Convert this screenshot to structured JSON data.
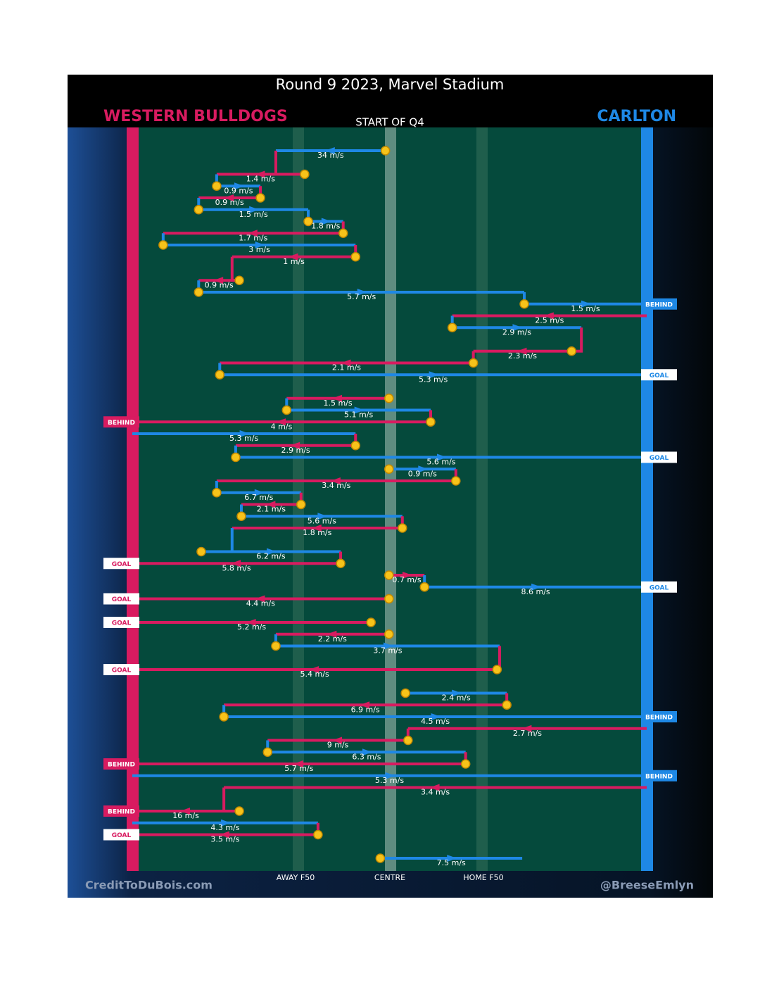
{
  "header": {
    "title": "Round 9 2023, Marvel Stadium",
    "home_team": "WESTERN BULLDOGS",
    "away_team": "CARLTON",
    "subtitle": "START OF Q4"
  },
  "field": {
    "labels": [
      "AWAY F50",
      "CENTRE",
      "HOME F50"
    ]
  },
  "footer": {
    "left": "CreditToDuBois.com",
    "right": "@BreeseEmlyn"
  },
  "chains": [
    {
      "row": 0,
      "team": "Carlton",
      "from": 49.2,
      "to": 27.9,
      "speed": "34 m/s"
    },
    {
      "row": 2,
      "team": "Western Bulldogs",
      "from": 33.5,
      "to": 16.4,
      "speed": "1.4 m/s"
    },
    {
      "row": 3,
      "team": "Carlton",
      "from": 16.4,
      "to": 24.9,
      "speed": "0.9 m/s"
    },
    {
      "row": 4,
      "team": "Western Bulldogs",
      "from": 24.9,
      "to": 12.9,
      "speed": "0.9 m/s"
    },
    {
      "row": 5,
      "team": "Carlton",
      "from": 12.9,
      "to": 34.2,
      "speed": "1.5 m/s"
    },
    {
      "row": 6,
      "team": "Carlton",
      "from": 34.2,
      "to": 41.0,
      "speed": "1.8 m/s"
    },
    {
      "row": 7,
      "team": "Western Bulldogs",
      "from": 41.0,
      "to": 6.0,
      "speed": "1.7 m/s"
    },
    {
      "row": 8,
      "team": "Carlton",
      "from": 6.0,
      "to": 43.4,
      "speed": "3 m/s"
    },
    {
      "row": 9,
      "team": "Western Bulldogs",
      "from": 43.4,
      "to": 19.4,
      "speed": "1 m/s"
    },
    {
      "row": 11,
      "team": "Western Bulldogs",
      "from": 20.8,
      "to": 12.9,
      "speed": "0.9 m/s"
    },
    {
      "row": 12,
      "team": "Carlton",
      "from": 12.9,
      "to": 76.2,
      "speed": "5.7 m/s"
    },
    {
      "row": 13,
      "team": "Carlton",
      "from": 76.2,
      "to": 100,
      "speed": "1.5 m/s",
      "outcome": "BEHIND"
    },
    {
      "row": 14,
      "team": "Western Bulldogs",
      "from": 100,
      "to": 62.2,
      "speed": "2.5 m/s"
    },
    {
      "row": 15,
      "team": "Carlton",
      "from": 62.2,
      "to": 87.3,
      "speed": "2.9 m/s"
    },
    {
      "row": 17,
      "team": "Western Bulldogs",
      "from": 85.4,
      "to": 66.3,
      "speed": "2.3 m/s"
    },
    {
      "row": 18,
      "team": "Western Bulldogs",
      "from": 66.3,
      "to": 17.0,
      "speed": "2.1 m/s"
    },
    {
      "row": 19,
      "team": "Carlton",
      "from": 17.0,
      "to": 100,
      "speed": "5.3 m/s",
      "outcome": "GOAL"
    },
    {
      "row": 21,
      "team": "Western Bulldogs",
      "from": 49.9,
      "to": 30.0,
      "speed": "1.5 m/s"
    },
    {
      "row": 22,
      "team": "Carlton",
      "from": 30.0,
      "to": 58.0,
      "speed": "5.1 m/s"
    },
    {
      "row": 23,
      "team": "Western Bulldogs",
      "from": 58.0,
      "to": 0,
      "speed": "4 m/s",
      "outcome": "BEHIND"
    },
    {
      "row": 24,
      "team": "Carlton",
      "from": 0,
      "to": 43.4,
      "speed": "5.3 m/s"
    },
    {
      "row": 25,
      "team": "Western Bulldogs",
      "from": 43.4,
      "to": 20.1,
      "speed": "2.9 m/s"
    },
    {
      "row": 26,
      "team": "Carlton",
      "from": 20.1,
      "to": 100,
      "speed": "5.6 m/s",
      "outcome": "GOAL"
    },
    {
      "row": 27,
      "team": "Carlton",
      "from": 49.9,
      "to": 62.9,
      "speed": "0.9 m/s"
    },
    {
      "row": 28,
      "team": "Western Bulldogs",
      "from": 62.9,
      "to": 16.4,
      "speed": "3.4 m/s"
    },
    {
      "row": 29,
      "team": "Carlton",
      "from": 16.4,
      "to": 32.8,
      "speed": "6.7 m/s"
    },
    {
      "row": 30,
      "team": "Western Bulldogs",
      "from": 32.8,
      "to": 21.2,
      "speed": "2.1 m/s"
    },
    {
      "row": 31,
      "team": "Carlton",
      "from": 21.2,
      "to": 52.5,
      "speed": "5.6 m/s"
    },
    {
      "row": 32,
      "team": "Western Bulldogs",
      "from": 52.5,
      "to": 19.4,
      "speed": "1.8 m/s"
    },
    {
      "row": 34,
      "team": "Carlton",
      "from": 13.4,
      "to": 40.5,
      "speed": "6.2 m/s"
    },
    {
      "row": 35,
      "team": "Western Bulldogs",
      "from": 40.5,
      "to": 0,
      "speed": "5.8 m/s",
      "outcome": "GOAL"
    },
    {
      "row": 36,
      "team": "Western Bulldogs",
      "from": 49.9,
      "to": 56.8,
      "speed": "0.7 m/s"
    },
    {
      "row": 37,
      "team": "Carlton",
      "from": 56.8,
      "to": 100,
      "speed": "8.6 m/s",
      "outcome": "GOAL"
    },
    {
      "row": 38,
      "team": "Western Bulldogs",
      "from": 49.9,
      "to": 0,
      "speed": "4.4 m/s",
      "outcome": "GOAL"
    },
    {
      "row": 40,
      "team": "Western Bulldogs",
      "from": 46.4,
      "to": 0,
      "speed": "5.2 m/s",
      "outcome": "GOAL"
    },
    {
      "row": 41,
      "team": "Western Bulldogs",
      "from": 49.9,
      "to": 27.9,
      "speed": "2.2 m/s"
    },
    {
      "row": 42,
      "team": "Carlton",
      "from": 27.9,
      "to": 71.4,
      "speed": "3.7 m/s"
    },
    {
      "row": 44,
      "team": "Western Bulldogs",
      "from": 70.9,
      "to": 0,
      "speed": "5.4 m/s",
      "outcome": "GOAL"
    },
    {
      "row": 46,
      "team": "Carlton",
      "from": 53.1,
      "to": 72.8,
      "speed": "2.4 m/s"
    },
    {
      "row": 47,
      "team": "Western Bulldogs",
      "from": 72.8,
      "to": 17.8,
      "speed": "6.9 m/s"
    },
    {
      "row": 48,
      "team": "Carlton",
      "from": 17.8,
      "to": 100,
      "speed": "4.5 m/s",
      "outcome": "BEHIND"
    },
    {
      "row": 49,
      "team": "Western Bulldogs",
      "from": 100,
      "to": 53.6,
      "speed": "2.7 m/s"
    },
    {
      "row": 50,
      "team": "Western Bulldogs",
      "from": 53.6,
      "to": 26.3,
      "speed": "9 m/s"
    },
    {
      "row": 51,
      "team": "Carlton",
      "from": 26.3,
      "to": 64.8,
      "speed": "6.3 m/s"
    },
    {
      "row": 52,
      "team": "Western Bulldogs",
      "from": 64.8,
      "to": 0,
      "speed": "5.7 m/s",
      "outcome": "BEHIND"
    },
    {
      "row": 53,
      "team": "Carlton",
      "from": 0,
      "to": 100,
      "speed": "5.3 m/s",
      "outcome": "BEHIND"
    },
    {
      "row": 54,
      "team": "Western Bulldogs",
      "from": 100,
      "to": 17.8,
      "speed": "3.4 m/s"
    },
    {
      "row": 56,
      "team": "Western Bulldogs",
      "from": 20.8,
      "to": 0,
      "speed": "16 m/s",
      "outcome": "BEHIND"
    },
    {
      "row": 57,
      "team": "Carlton",
      "from": 0,
      "to": 36.1,
      "speed": "4.3 m/s"
    },
    {
      "row": 58,
      "team": "Western Bulldogs",
      "from": 36.1,
      "to": 0,
      "speed": "3.5 m/s",
      "outcome": "GOAL"
    },
    {
      "row": 60,
      "team": "Carlton",
      "from": 48.2,
      "to": 75.8,
      "speed": "7.5 m/s"
    }
  ]
}
